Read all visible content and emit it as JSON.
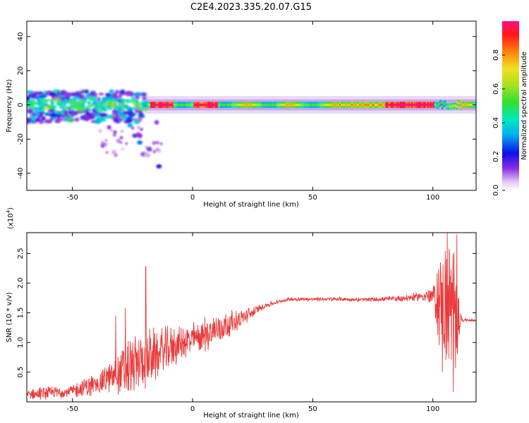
{
  "title": "C2E4.2023.335.20.07.G15",
  "chart_data": [
    {
      "type": "heatmap",
      "xlabel": "Height of straight line (km)",
      "ylabel": "Frequency (Hz)",
      "xlim": [
        -69,
        118
      ],
      "ylim": [
        -50,
        49
      ],
      "x_ticks": [
        -50,
        0,
        50,
        100
      ],
      "y_ticks": [
        -40,
        -20,
        0,
        20,
        40
      ],
      "x_tick_labels": [
        "-50",
        "0",
        "50",
        "100"
      ],
      "y_tick_labels": [
        "-40",
        "-20",
        "0",
        "20",
        "40"
      ],
      "colorbar": {
        "label": "Normalized spectral amplitude",
        "range": [
          0.0,
          1.0
        ],
        "ticks": [
          0.0,
          0.2,
          0.4,
          0.6,
          0.8
        ],
        "tick_labels": [
          "0.0",
          "0.2",
          "0.4",
          "0.6",
          "0.8"
        ]
      },
      "features": {
        "main_band_frequency_hz": 0,
        "band_half_width_hz": 2,
        "scatter_region_x": [
          -69,
          -20
        ],
        "scatter_region_y": [
          -10,
          8
        ],
        "diverging_branch": [
          [
            -30,
            -5
          ],
          [
            -26,
            -12
          ],
          [
            -24,
            -18
          ],
          [
            -22,
            -22
          ],
          [
            -18,
            -26
          ],
          [
            -14,
            -36
          ]
        ],
        "high_amplitude_x": [
          [
            -18,
            -8
          ],
          [
            0,
            10
          ],
          [
            80,
            100
          ]
        ],
        "disturbed_region_x": [
          100,
          112
        ]
      }
    },
    {
      "type": "line",
      "xlabel": "Height of straight line (km)",
      "ylabel": "SNR (10 * v/v)",
      "multiplier": "(x10",
      "multiplier_exp": "4",
      "xlim": [
        -69,
        118
      ],
      "ylim": [
        0,
        2.85
      ],
      "x_ticks": [
        -50,
        0,
        50,
        100
      ],
      "y_ticks": [
        0.5,
        1.0,
        1.5,
        2.0,
        2.5
      ],
      "x_tick_labels": [
        "-50",
        "0",
        "50",
        "100"
      ],
      "y_tick_labels": [
        "0.5",
        "1.0",
        "1.5",
        "2.0",
        "2.5"
      ],
      "color": "#e83a3a",
      "baseline_x": [
        -69,
        -60,
        -50,
        -40,
        -30,
        -20,
        -10,
        0,
        10,
        20,
        30,
        40,
        50,
        60,
        70,
        80,
        90,
        95,
        100,
        105,
        110,
        112,
        118
      ],
      "baseline_y": [
        0.12,
        0.15,
        0.18,
        0.3,
        0.5,
        0.7,
        0.9,
        1.05,
        1.22,
        1.4,
        1.62,
        1.73,
        1.73,
        1.73,
        1.72,
        1.73,
        1.75,
        1.78,
        1.78,
        1.6,
        1.45,
        1.38,
        1.37
      ],
      "noise_amplitude_x": [
        -69,
        -50,
        -35,
        -25,
        -15,
        -5,
        0,
        10,
        20,
        30,
        40,
        80,
        95,
        100,
        103,
        108,
        111,
        112,
        118
      ],
      "noise_amplitude_y": [
        0.1,
        0.12,
        0.25,
        0.55,
        0.45,
        0.3,
        0.3,
        0.3,
        0.15,
        0.05,
        0.03,
        0.04,
        0.08,
        0.15,
        0.9,
        1.3,
        0.6,
        0.03,
        0.02
      ],
      "peaks": [
        {
          "x": -19.5,
          "y": 2.28
        },
        {
          "x": -28,
          "y": 1.58
        },
        {
          "x": -32,
          "y": 1.45
        },
        {
          "x": 106,
          "y": 2.85
        },
        {
          "x": 110,
          "y": 2.82
        },
        {
          "x": 108.5,
          "y": 0.17
        },
        {
          "x": 104,
          "y": 0.5
        }
      ]
    }
  ]
}
